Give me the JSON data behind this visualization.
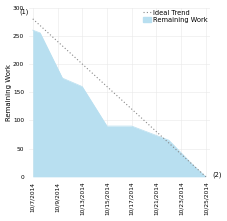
{
  "dates": [
    "10/7/2014",
    "10/9/2014",
    "10/13/2014",
    "10/15/2014",
    "10/17/2014",
    "10/21/2014",
    "10/23/2014",
    "10/25/2014"
  ],
  "ideal_trend": [
    280,
    240,
    200,
    160,
    120,
    80,
    40,
    0
  ],
  "remaining_work": [
    260,
    255,
    175,
    160,
    90,
    90,
    65,
    20,
    0
  ],
  "remaining_x": [
    0,
    0.3,
    1.2,
    2.0,
    3.0,
    4.0,
    5.5,
    6.5,
    7.0
  ],
  "ideal_start_label": "(1)",
  "ideal_end_label": "(2)",
  "ylim": [
    0,
    300
  ],
  "yticks": [
    0,
    50,
    100,
    150,
    200,
    250,
    300
  ],
  "ylabel": "Remaining Work",
  "legend_ideal": "Ideal Trend",
  "legend_remaining": "Remaining Work",
  "area_color": "#b8dff0",
  "area_alpha": 1.0,
  "trend_color": "#888888",
  "background_color": "#ffffff",
  "grid_color": "#e8e8e8",
  "axis_fontsize": 5.0,
  "tick_fontsize": 4.2,
  "legend_fontsize": 4.8,
  "label_fontsize": 4.8
}
